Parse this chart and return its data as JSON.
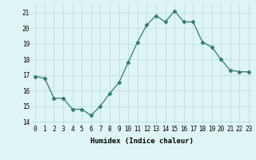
{
  "x": [
    0,
    1,
    2,
    3,
    4,
    5,
    6,
    7,
    8,
    9,
    10,
    11,
    12,
    13,
    14,
    15,
    16,
    17,
    18,
    19,
    20,
    21,
    22,
    23
  ],
  "y": [
    16.9,
    16.8,
    15.5,
    15.5,
    14.8,
    14.8,
    14.4,
    15.0,
    15.8,
    16.5,
    17.8,
    19.1,
    20.2,
    20.8,
    20.4,
    21.1,
    20.4,
    20.4,
    19.1,
    18.8,
    18.0,
    17.3,
    17.2,
    17.2
  ],
  "xlabel": "Humidex (Indice chaleur)",
  "xlim": [
    -0.5,
    23.5
  ],
  "ylim": [
    13.8,
    21.6
  ],
  "yticks": [
    14,
    15,
    16,
    17,
    18,
    19,
    20,
    21
  ],
  "xtick_labels": [
    "0",
    "1",
    "2",
    "3",
    "4",
    "5",
    "6",
    "7",
    "8",
    "9",
    "10",
    "11",
    "12",
    "13",
    "14",
    "15",
    "16",
    "17",
    "18",
    "19",
    "20",
    "21",
    "22",
    "23"
  ],
  "line_color": "#2e7d6e",
  "marker": "D",
  "marker_size": 2.5,
  "bg_color": "#dff4f4",
  "grid_color": "#b8dada",
  "label_fontsize": 6.5,
  "tick_fontsize": 5.5
}
